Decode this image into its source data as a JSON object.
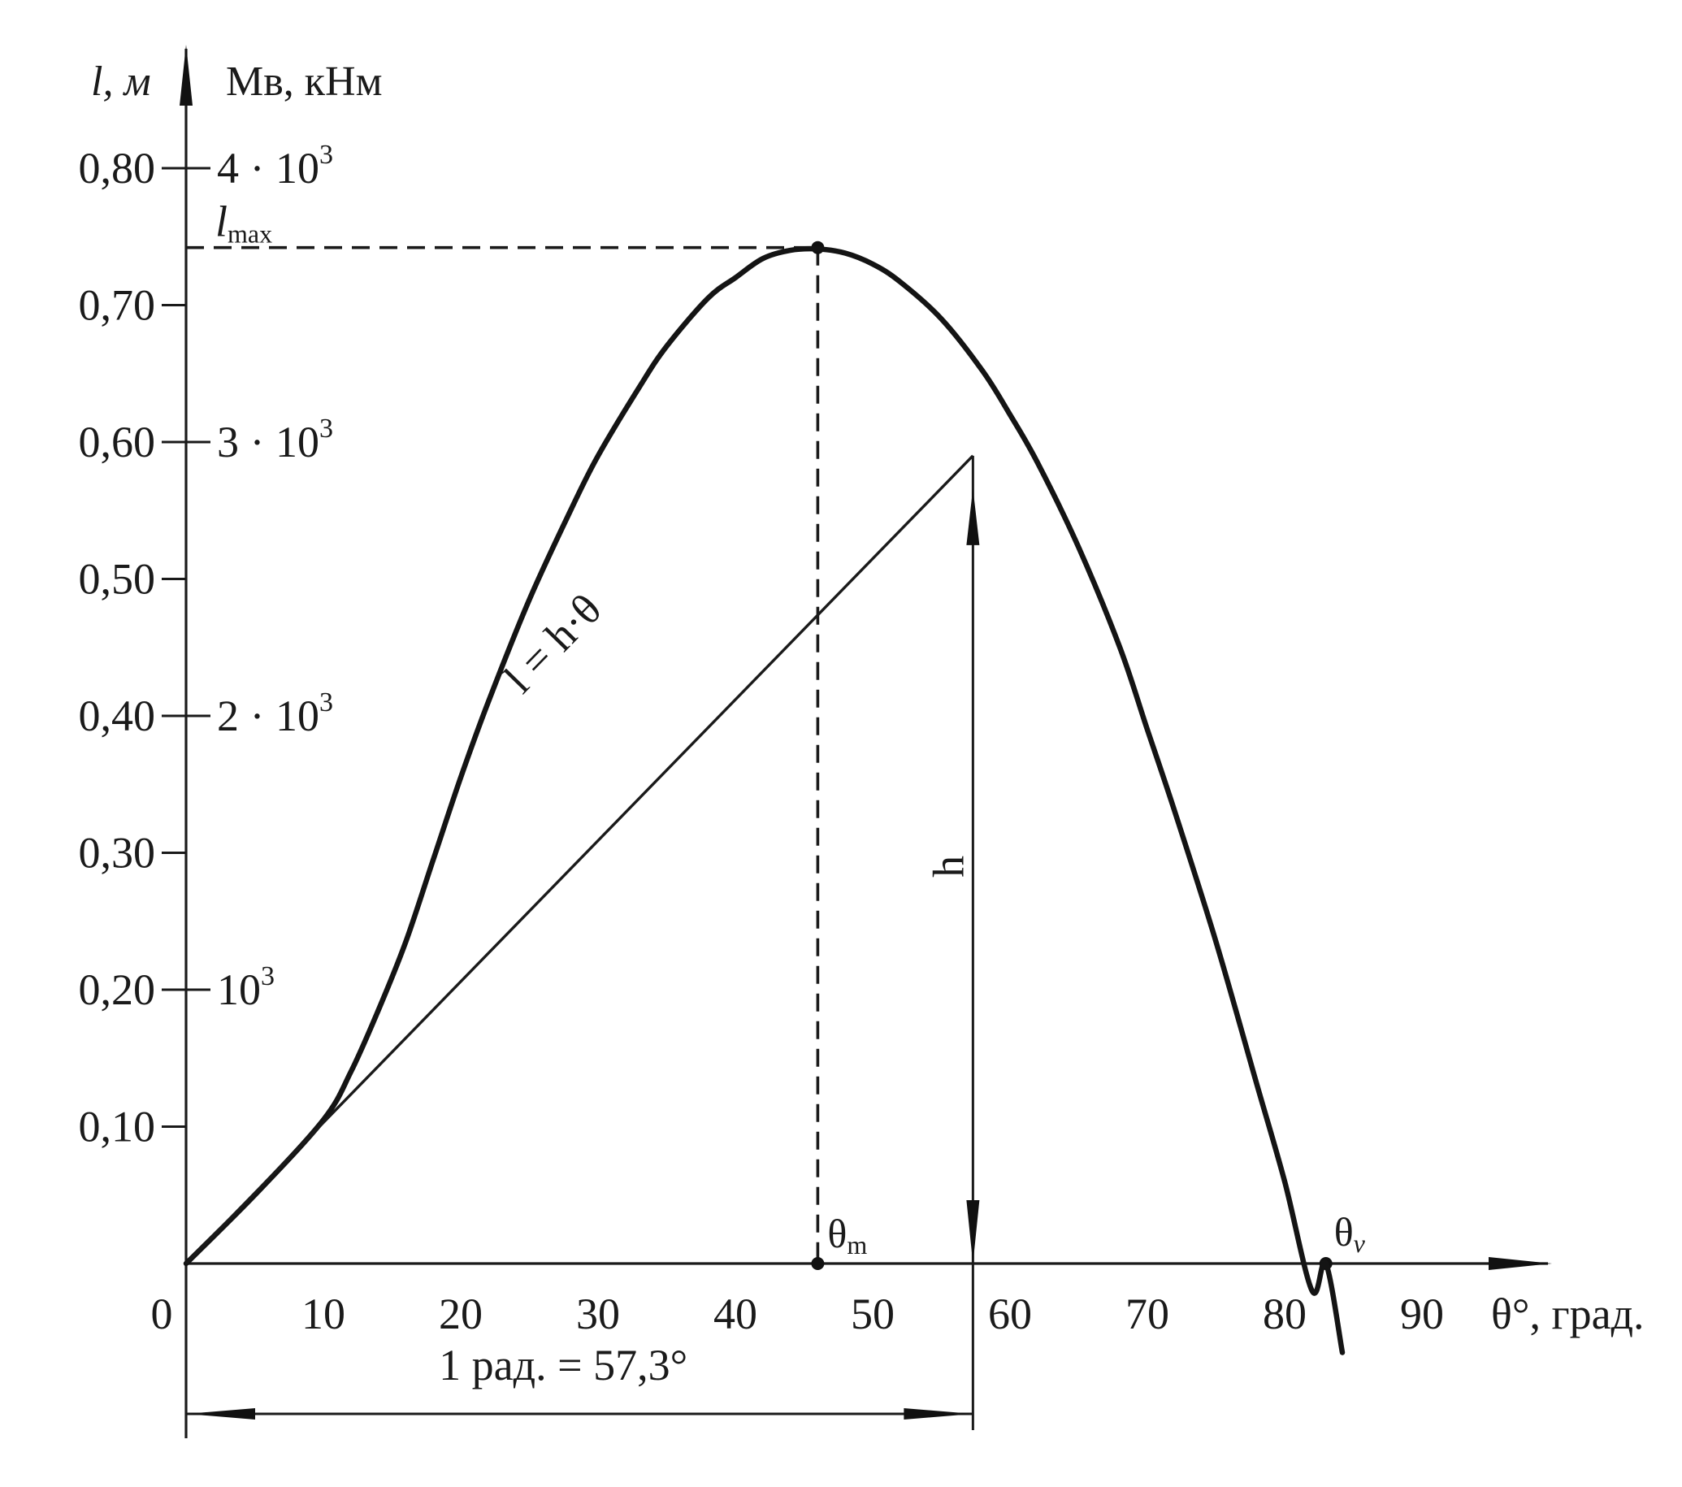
{
  "chart_data": {
    "type": "line",
    "title": "",
    "xlabel": "θ°, град.",
    "ylabel_left": "l, м",
    "ylabel_right": "Мв, кНм",
    "xlim": [
      0,
      100
    ],
    "ylim": [
      0,
      0.85
    ],
    "x_ticks": [
      {
        "value": 0,
        "label": "0"
      },
      {
        "value": 10,
        "label": "10"
      },
      {
        "value": 20,
        "label": "20"
      },
      {
        "value": 30,
        "label": "30"
      },
      {
        "value": 40,
        "label": "40"
      },
      {
        "value": 50,
        "label": "50"
      },
      {
        "value": 60,
        "label": "60"
      },
      {
        "value": 70,
        "label": "70"
      },
      {
        "value": 80,
        "label": "80"
      },
      {
        "value": 90,
        "label": "90"
      }
    ],
    "y_ticks_left": [
      {
        "value": 0.1,
        "label": "0,10"
      },
      {
        "value": 0.2,
        "label": "0,20"
      },
      {
        "value": 0.3,
        "label": "0,30"
      },
      {
        "value": 0.4,
        "label": "0,40"
      },
      {
        "value": 0.5,
        "label": "0,50"
      },
      {
        "value": 0.6,
        "label": "0,60"
      },
      {
        "value": 0.7,
        "label": "0,70"
      },
      {
        "value": 0.8,
        "label": "0,80"
      }
    ],
    "y_ticks_right": [
      {
        "value": 0.2,
        "base": "10",
        "exp": "3"
      },
      {
        "value": 0.4,
        "base": "2 · 10",
        "exp": "3"
      },
      {
        "value": 0.6,
        "base": "3 · 10",
        "exp": "3"
      },
      {
        "value": 0.8,
        "base": "4 · 10",
        "exp": "3"
      }
    ],
    "series": [
      {
        "x": [
          0,
          5,
          10,
          12,
          14,
          16,
          18,
          20,
          22,
          25,
          28,
          30,
          33,
          35,
          38,
          40,
          42,
          44,
          46,
          48,
          50,
          52,
          55,
          58,
          60,
          62,
          65,
          68,
          70,
          72,
          75,
          78,
          80,
          82,
          83,
          84.2
        ],
        "y": [
          0,
          0.05,
          0.105,
          0.14,
          0.185,
          0.235,
          0.295,
          0.355,
          0.41,
          0.485,
          0.55,
          0.59,
          0.64,
          0.67,
          0.705,
          0.72,
          0.734,
          0.74,
          0.741,
          0.738,
          0.73,
          0.717,
          0.69,
          0.652,
          0.62,
          0.585,
          0.523,
          0.45,
          0.39,
          0.33,
          0.235,
          0.13,
          0.06,
          -0.02,
          0.0,
          -0.065
        ]
      },
      {
        "x": [
          0,
          57.3
        ],
        "y": [
          0,
          0.59
        ]
      }
    ],
    "annotations": {
      "lmax_label_base": "l",
      "lmax_label_sub": "max",
      "lmax_value": 0.742,
      "theta_m_label_base": "θ",
      "theta_m_label_sub": "m",
      "theta_m_value": 46,
      "theta_v_label_base": "θ",
      "theta_v_label_sub": "ν",
      "theta_v_value": 83,
      "tangent_label": "l = h·θ",
      "h_label": "h",
      "h_value": 0.59,
      "radian_label": "1 рад. = 57,3°",
      "radian_value": 57.3
    }
  }
}
